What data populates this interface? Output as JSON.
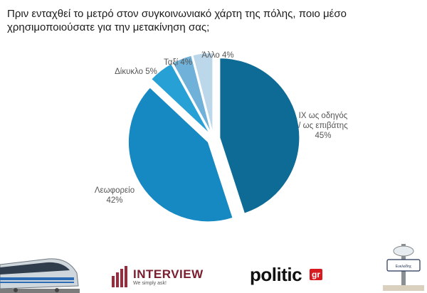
{
  "title": "Πριν ενταχθεί το μετρό στον συγκοινωνιακό χάρτη της πόλης, ποιο μέσο χρησιμοποιούσατε για την μετακίνηση σας;",
  "chart_data": {
    "type": "pie",
    "slices": [
      {
        "label_lines": [
          "ΙΧ ως οδηγός",
          "/ ως επιβάτης",
          "45%"
        ],
        "value": 45,
        "color": "#0e6b96"
      },
      {
        "label_lines": [
          "Λεωφορείο",
          "42%"
        ],
        "value": 42,
        "color": "#1689c2"
      },
      {
        "label_lines": [
          "Δίκυκλο 5%"
        ],
        "value": 5,
        "color": "#27a0d6"
      },
      {
        "label_lines": [
          "Ταξί 4%"
        ],
        "value": 4,
        "color": "#6fb1d9"
      },
      {
        "label_lines": [
          "Άλλο 4%"
        ],
        "value": 4,
        "color": "#bcd6ea"
      }
    ]
  },
  "logos": {
    "interview_name": "INTERVIEW",
    "interview_tagline": "We simply ask!",
    "politic_word": "politic",
    "politic_suffix": "gr",
    "station_sign": "Ευκλείδης"
  }
}
